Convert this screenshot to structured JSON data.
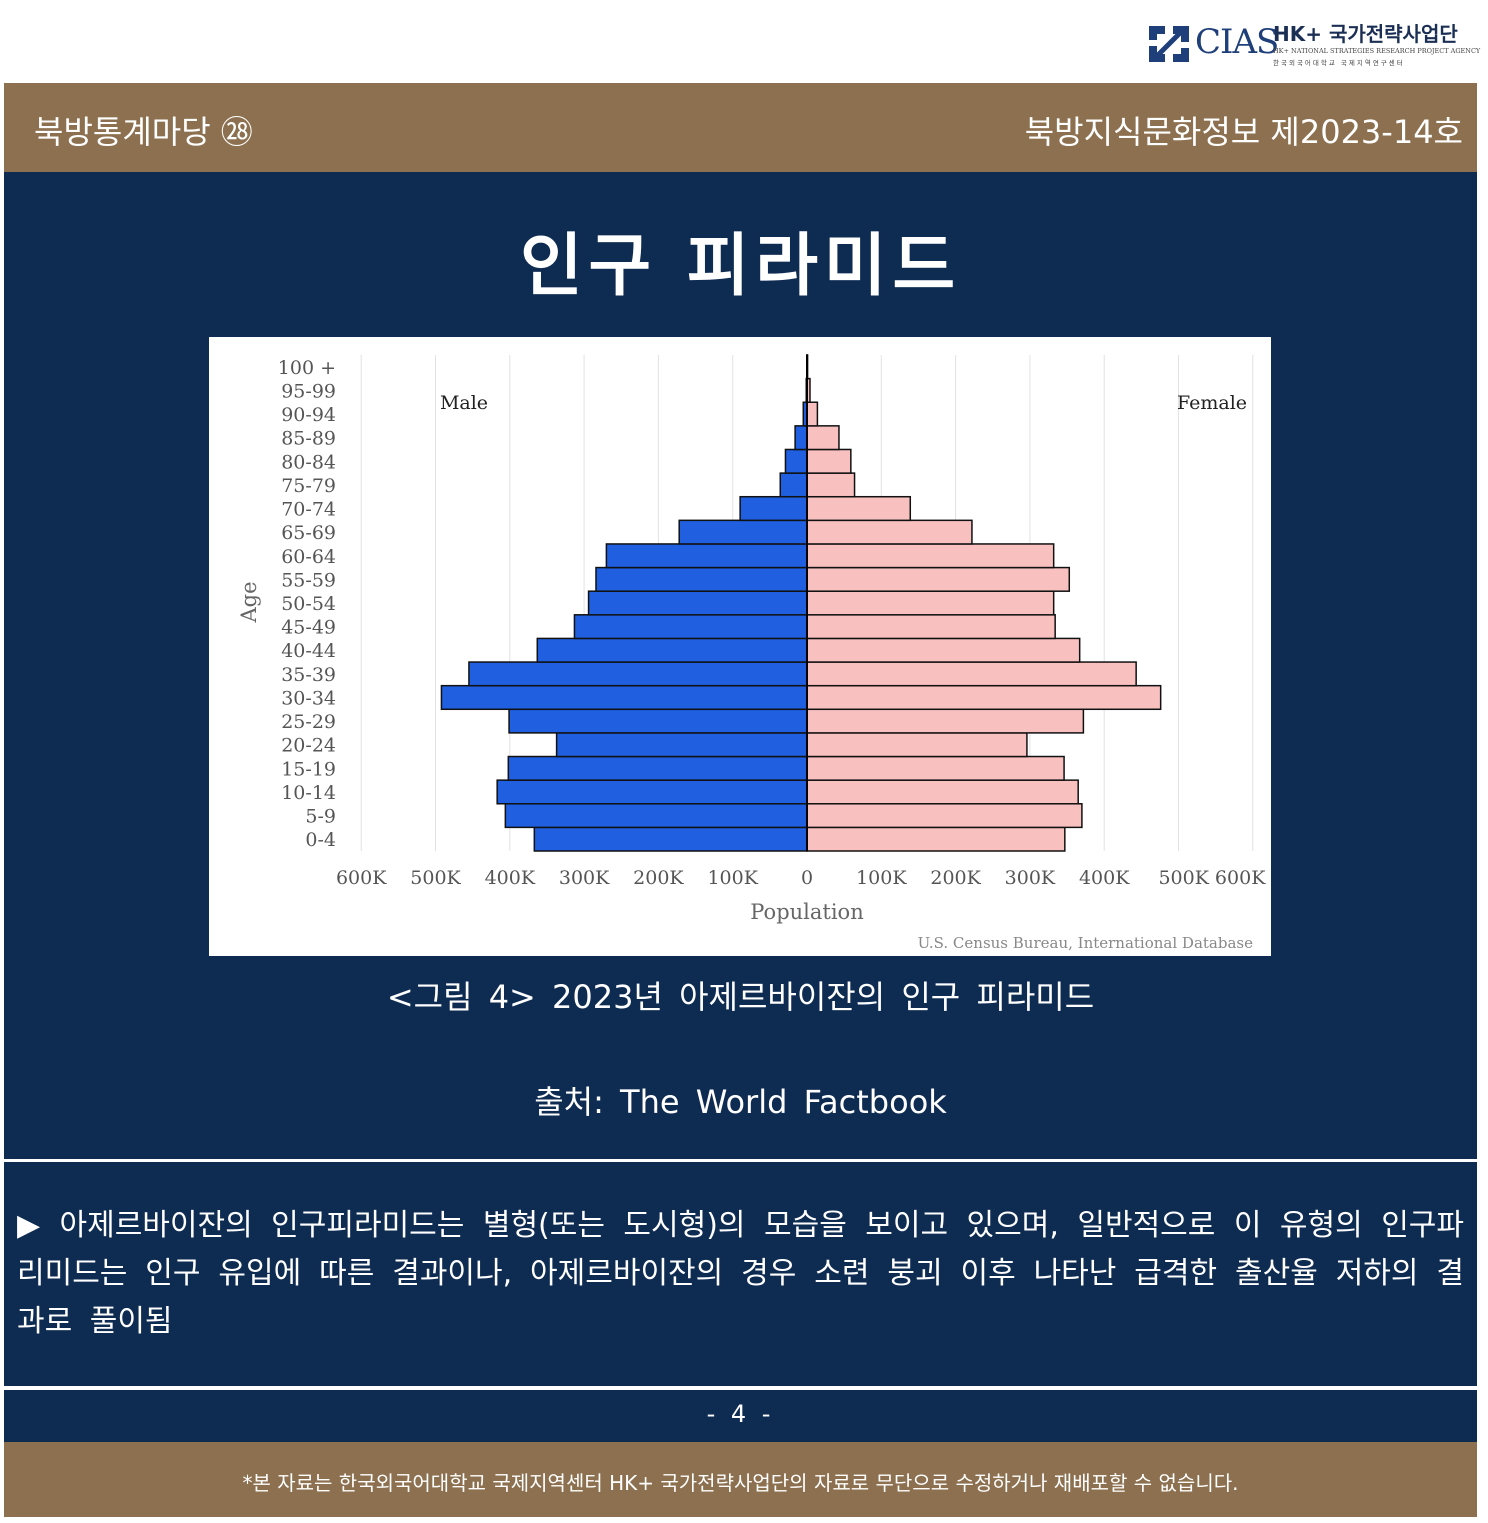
{
  "logo": {
    "brand": "CIAS",
    "title": "HK+ 국가전략사업단",
    "sub_en": "HK+ NATIONAL STRATEGIES RESEARCH PROJECT AGENCY",
    "sub_ko": "한국외국어대학교 국제지역연구센터"
  },
  "header": {
    "series": "북방통계마당 ㉘",
    "issue": "북방지식문화정보 제2023-14호"
  },
  "page_title": "인구 피라미드",
  "chart_data": {
    "type": "bar",
    "orientation": "horizontal-pyramid",
    "categories": [
      "0-4",
      "5-9",
      "10-14",
      "15-19",
      "20-24",
      "25-29",
      "30-34",
      "35-39",
      "40-44",
      "45-49",
      "50-54",
      "55-59",
      "60-64",
      "65-69",
      "70-74",
      "75-79",
      "80-84",
      "85-89",
      "90-94",
      "95-99",
      "100 +"
    ],
    "series": [
      {
        "name": "Male",
        "color": "#1f5fe0",
        "values": [
          367000,
          406000,
          417000,
          402000,
          337000,
          401000,
          492000,
          455000,
          363000,
          313000,
          294000,
          284000,
          270000,
          172000,
          90000,
          36000,
          29000,
          16000,
          5000,
          1000,
          300
        ]
      },
      {
        "name": "Female",
        "color": "#f9c0c0",
        "values": [
          347000,
          370000,
          365000,
          346000,
          296000,
          372000,
          476000,
          443000,
          367000,
          334000,
          332000,
          353000,
          332000,
          222000,
          139000,
          64000,
          59000,
          43000,
          14000,
          4000,
          800
        ]
      }
    ],
    "xlabel": "Population",
    "ylabel": "Age",
    "x_ticks_left": [
      "600K",
      "500K",
      "400K",
      "300K",
      "200K",
      "100K"
    ],
    "x_tick_zero": "0",
    "x_ticks_right": [
      "100K",
      "200K",
      "300K",
      "400K",
      "500K 600K"
    ],
    "xlim": [
      -600000,
      600000
    ],
    "grid": true,
    "credit": "U.S. Census Bureau, International Database"
  },
  "caption": "<그림 4> 2023년 아제르바이잔의 인구 피라미드",
  "source": "출처: The World Factbook",
  "body_text": "▶ 아제르바이잔의 인구피라미드는 별형(또는 도시형)의 모습을 보이고 있으며, 일반적으로 이 유형의 인구파리미드는 인구 유입에 따른 결과이나, 아제르바이잔의 경우 소련 붕괴 이후 나타난 급격한 출산율 저하의 결과로 풀이됨",
  "page_number": "- 4 -",
  "footer_note": "*본 자료는 한국외국어대학교 국제지역센터 HK+ 국가전략사업단의 자료로 무단으로 수정하거나 재배포할 수 없습니다."
}
